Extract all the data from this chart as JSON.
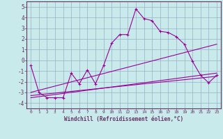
{
  "title": "",
  "xlabel": "Windchill (Refroidissement éolien,°C)",
  "ylabel": "",
  "xlim": [
    -0.5,
    23.5
  ],
  "ylim": [
    -4.5,
    5.5
  ],
  "xticks": [
    0,
    1,
    2,
    3,
    4,
    5,
    6,
    7,
    8,
    9,
    10,
    11,
    12,
    13,
    14,
    15,
    16,
    17,
    18,
    19,
    20,
    21,
    22,
    23
  ],
  "yticks": [
    -4,
    -3,
    -2,
    -1,
    0,
    1,
    2,
    3,
    4,
    5
  ],
  "background_color": "#c8eaea",
  "plot_bg_color": "#c8eaea",
  "grid_color": "#9ab0c8",
  "line_color": "#990099",
  "spine_color": "#663366",
  "main_line": {
    "x": [
      0,
      1,
      2,
      3,
      4,
      5,
      6,
      7,
      8,
      9,
      10,
      11,
      12,
      13,
      14,
      15,
      16,
      17,
      18,
      19,
      20,
      21,
      22,
      23
    ],
    "y": [
      -0.5,
      -3.0,
      -3.5,
      -3.5,
      -3.5,
      -1.2,
      -2.2,
      -0.9,
      -2.2,
      -0.5,
      1.6,
      2.4,
      2.4,
      4.8,
      3.9,
      3.7,
      2.7,
      2.6,
      2.2,
      1.5,
      -0.1,
      -1.4,
      -2.1,
      -1.4
    ]
  },
  "trend_lines": [
    {
      "x": [
        0,
        23
      ],
      "y": [
        -3.0,
        1.5
      ]
    },
    {
      "x": [
        0,
        23
      ],
      "y": [
        -3.3,
        -1.5
      ]
    },
    {
      "x": [
        0,
        23
      ],
      "y": [
        -3.5,
        -1.2
      ]
    }
  ]
}
